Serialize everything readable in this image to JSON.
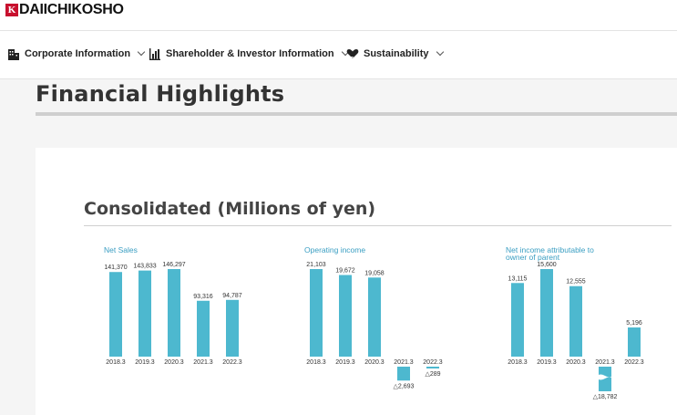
{
  "logo": {
    "mark": "K",
    "text": "DAIICHIKOSHO"
  },
  "nav": {
    "items": [
      {
        "label": "Corporate Information",
        "icon": "building-icon"
      },
      {
        "label": "Shareholder & Investor Information",
        "icon": "bar-chart-icon"
      },
      {
        "label": "Sustainability",
        "icon": "heart-hand-icon"
      }
    ]
  },
  "page": {
    "title": "Financial Highlights"
  },
  "section": {
    "title": "Consolidated (Millions of yen)"
  },
  "colors": {
    "bar": "#4db8cf",
    "accent": "#3a9ec2"
  },
  "chart_data": [
    {
      "type": "bar",
      "title": "Net Sales",
      "categories": [
        "2018.3",
        "2019.3",
        "2020.3",
        "2021.3",
        "2022.3"
      ],
      "values": [
        141370,
        143833,
        146297,
        93316,
        94787
      ],
      "value_labels": [
        "141,370",
        "143,833",
        "146,297",
        "93,316",
        "94,787"
      ],
      "ylim": [
        0,
        150000
      ]
    },
    {
      "type": "bar",
      "title": "Operating income",
      "categories": [
        "2018.3",
        "2019.3",
        "2020.3",
        "2021.3",
        "2022.3"
      ],
      "values": [
        21103,
        19672,
        19058,
        -2693,
        -289
      ],
      "value_labels": [
        "21,103",
        "19,672",
        "19,058",
        "△2,693",
        "△289"
      ],
      "ylim": [
        -3000,
        22000
      ]
    },
    {
      "type": "bar",
      "title": "Net income attributable to owner of parent",
      "categories": [
        "2018.3",
        "2019.3",
        "2020.3",
        "2021.3",
        "2022.3"
      ],
      "values": [
        13115,
        15600,
        12555,
        -18782,
        5196
      ],
      "value_labels": [
        "13,115",
        "15,600",
        "12,555",
        "△18,782",
        "5,196"
      ],
      "axis_break": true,
      "ylim": [
        -18782,
        16000
      ]
    }
  ]
}
